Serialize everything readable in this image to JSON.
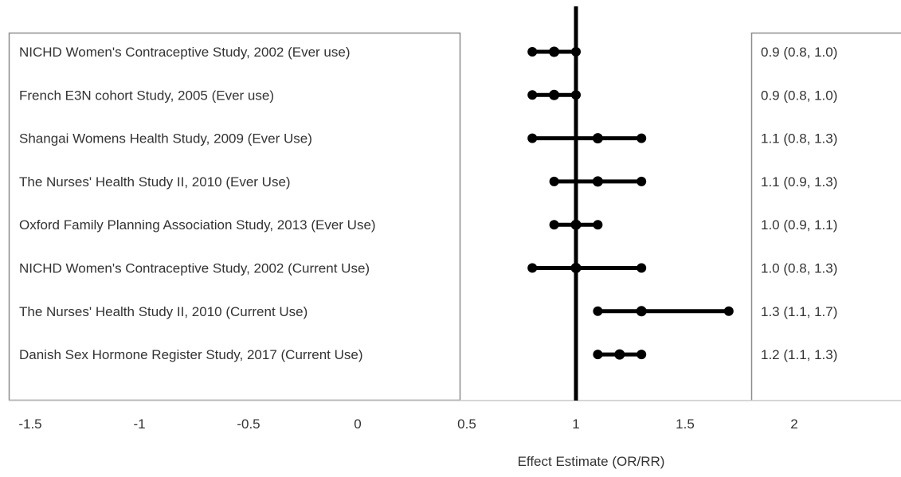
{
  "chart_data": {
    "type": "forest",
    "xlabel": "Effect Estimate (OR/RR)",
    "xlim": [
      -1.5,
      2.3
    ],
    "x_ticks": [
      "-1.5",
      "-1",
      "-0.5",
      "0",
      "0.5",
      "1",
      "1.5",
      "2"
    ],
    "x_tick_values": [
      -1.5,
      -1,
      -0.5,
      0,
      0.5,
      1,
      1.5,
      2
    ],
    "reference_line": 1,
    "studies": [
      {
        "label": "NICHD Women's Contraceptive Study, 2002 (Ever use)",
        "estimate": 0.9,
        "lower": 0.8,
        "upper": 1.0,
        "ci_text": "0.9 (0.8, 1.0)"
      },
      {
        "label": "French E3N cohort Study, 2005 (Ever use)",
        "estimate": 0.9,
        "lower": 0.8,
        "upper": 1.0,
        "ci_text": "0.9 (0.8, 1.0)"
      },
      {
        "label": "Shangai Womens Health Study, 2009 (Ever Use)",
        "estimate": 1.1,
        "lower": 0.8,
        "upper": 1.3,
        "ci_text": "1.1 (0.8, 1.3)"
      },
      {
        "label": "The Nurses' Health Study II, 2010 (Ever Use)",
        "estimate": 1.1,
        "lower": 0.9,
        "upper": 1.3,
        "ci_text": "1.1 (0.9, 1.3)"
      },
      {
        "label": "Oxford Family Planning Association Study, 2013 (Ever Use)",
        "estimate": 1.0,
        "lower": 0.9,
        "upper": 1.1,
        "ci_text": "1.0 (0.9, 1.1)"
      },
      {
        "label": "NICHD Women's Contraceptive Study, 2002 (Current Use)",
        "estimate": 1.0,
        "lower": 0.8,
        "upper": 1.3,
        "ci_text": "1.0 (0.8, 1.3)"
      },
      {
        "label": "The Nurses' Health Study II, 2010 (Current Use)",
        "estimate": 1.3,
        "lower": 1.1,
        "upper": 1.7,
        "ci_text": "1.3 (1.1, 1.7)"
      },
      {
        "label": "Danish Sex Hormone Register Study, 2017 (Current Use)",
        "estimate": 1.2,
        "lower": 1.1,
        "upper": 1.3,
        "ci_text": "1.2 (1.1, 1.3)"
      }
    ]
  }
}
